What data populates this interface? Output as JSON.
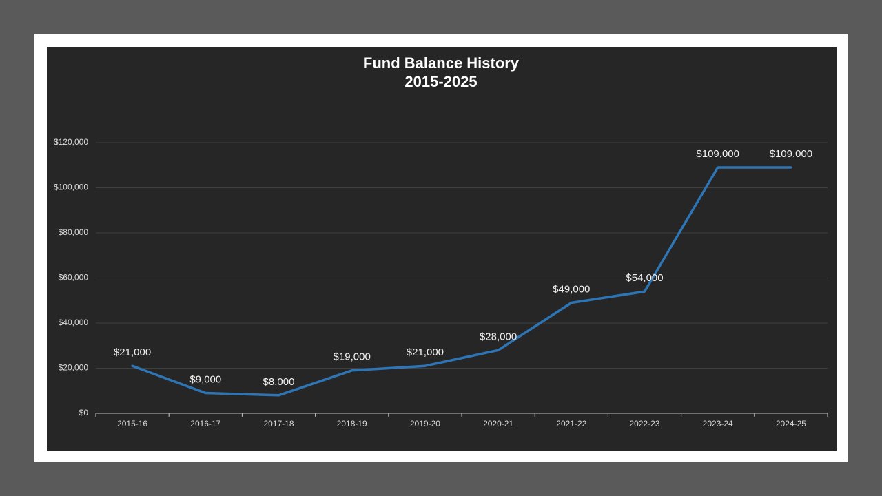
{
  "chart_data": {
    "type": "line",
    "title": "Fund Balance History",
    "subtitle": "2015-2025",
    "categories": [
      "2015-16",
      "2016-17",
      "2017-18",
      "2018-19",
      "2019-20",
      "2020-21",
      "2021-22",
      "2022-23",
      "2023-24",
      "2024-25"
    ],
    "values": [
      21000,
      9000,
      8000,
      19000,
      21000,
      28000,
      49000,
      54000,
      109000,
      109000
    ],
    "value_labels": [
      "$21,000",
      "$9,000",
      "$8,000",
      "$19,000",
      "$21,000",
      "$28,000",
      "$49,000",
      "$54,000",
      "$109,000",
      "$109,000"
    ],
    "color": "#2e75b6",
    "ylim": [
      0,
      120000
    ],
    "yticks": [
      {
        "value": 0,
        "label": "$0"
      },
      {
        "value": 20000,
        "label": "$20,000"
      },
      {
        "value": 40000,
        "label": "$40,000"
      },
      {
        "value": 60000,
        "label": "$60,000"
      },
      {
        "value": 80000,
        "label": "$80,000"
      },
      {
        "value": 100000,
        "label": "$100,000"
      },
      {
        "value": 120000,
        "label": "$120,000"
      }
    ],
    "grid": true
  }
}
